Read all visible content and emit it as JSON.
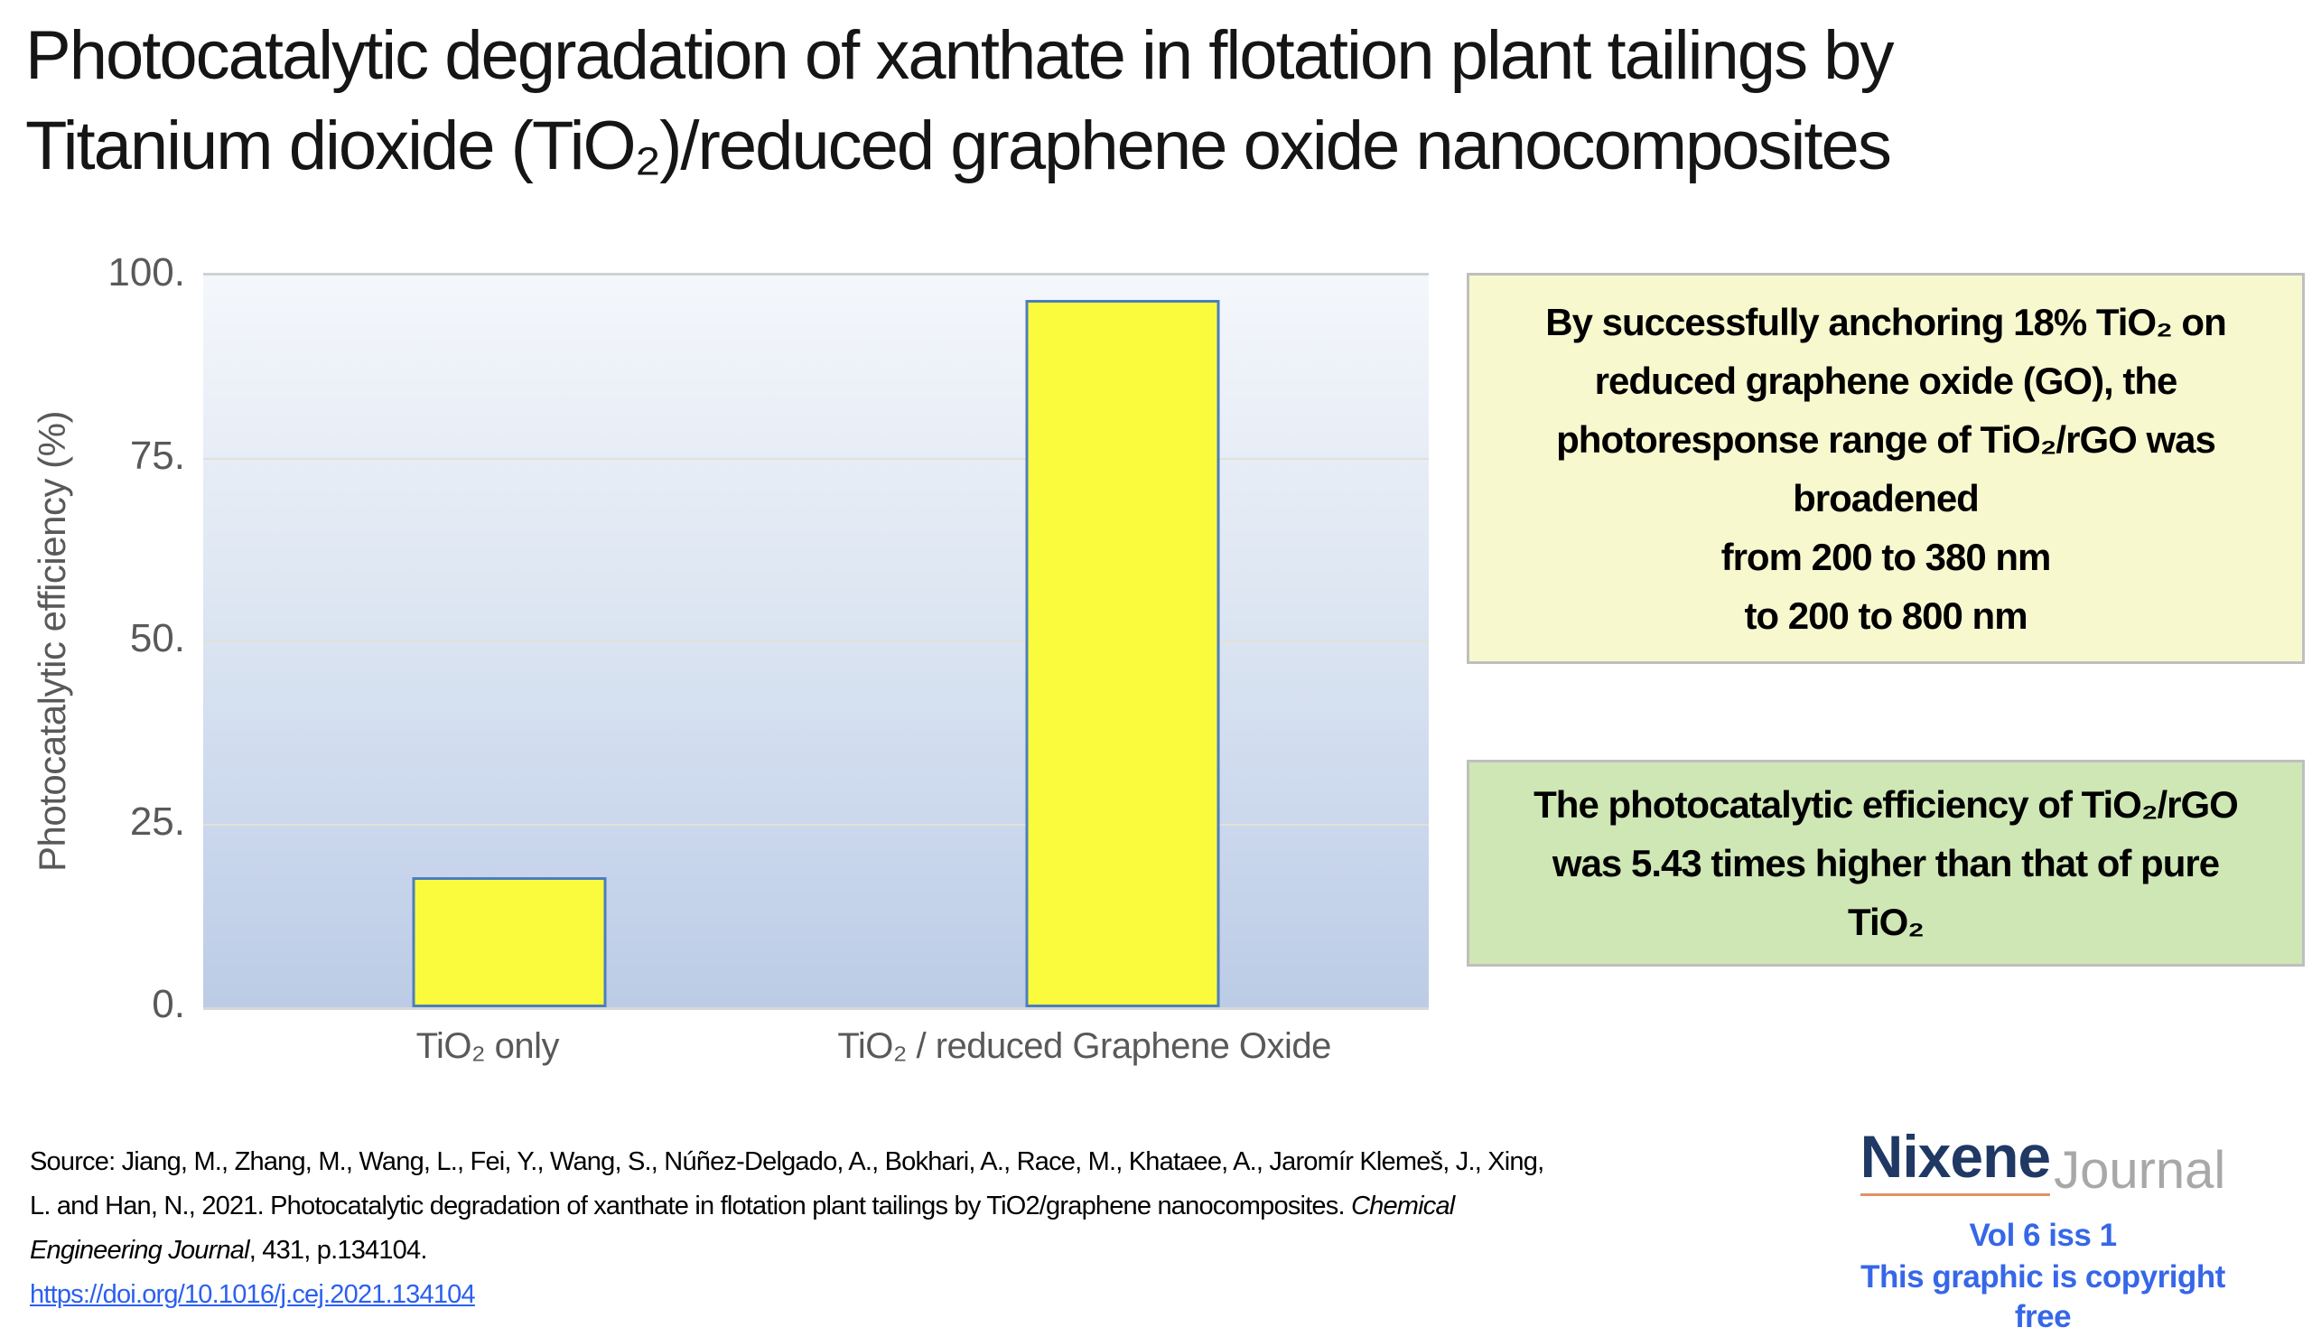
{
  "title": {
    "line1": "Photocatalytic degradation of xanthate in flotation plant tailings by",
    "line2": "Titanium dioxide (TiO₂)/reduced graphene oxide nanocomposites"
  },
  "chart_data": {
    "type": "bar",
    "categories": [
      "TiO₂ only",
      "TiO₂ / reduced Graphene Oxide"
    ],
    "values": [
      17.8,
      96.7
    ],
    "title": "",
    "xlabel": "",
    "ylabel": "Photocatalytic efficiency (%)",
    "ylim": [
      0,
      100
    ],
    "ytick_interval": 25,
    "ytick_labels": [
      "100.",
      "75.",
      "50.",
      "25.",
      "0."
    ],
    "grid": true,
    "legend": false,
    "bar_fill": "#fafb3d",
    "bar_border": "#4d7ebc",
    "plot_bg_top": "#f4f7fb",
    "plot_bg_bottom": "#bccce6",
    "gridline_color": "#e3e0d6",
    "axis_text_color": "#595959"
  },
  "callout_yellow": {
    "bg": "#f8f8cf",
    "border": "#bfbfbf",
    "lines": [
      "By successfully anchoring 18% TiO₂ on",
      "reduced graphene oxide (GO), the",
      "photoresponse range of TiO₂/rGO was",
      "broadened",
      "from 200 to 380 nm",
      "to 200 to 800 nm"
    ]
  },
  "callout_green": {
    "bg": "#cfe7b5",
    "border": "#bfbfbf",
    "lines": [
      "The photocatalytic efficiency of TiO₂/rGO",
      "was 5.43 times higher than that of pure",
      "TiO₂"
    ]
  },
  "source": {
    "line1": "Source:   Jiang, M., Zhang, M., Wang, L., Fei, Y., Wang, S., Núñez-Delgado, A., Bokhari, A., Race, M., Khataee, A., Jaromír Klemeš, J., Xing,",
    "line2_normal": "L. and Han, N., 2021. Photocatalytic degradation of xanthate in flotation plant tailings by TiO2/graphene nanocomposites. ",
    "line2_italic": "Chemical",
    "line3_italic": "Engineering Journal",
    "line3_normal": ", 431, p.134104.",
    "link": "https://doi.org/10.1016/j.cej.2021.134104",
    "link_color": "#2b5ff0"
  },
  "branding": {
    "brand": "Nixene",
    "brand_suffix": "Journal",
    "volume": "Vol 6 iss 1",
    "copyright_note": "This graphic is copyright free",
    "brand_color": "#1f3864",
    "suffix_color": "#a8a8a8",
    "underline_color": "#e09268",
    "accent_blue": "#3667e8"
  }
}
